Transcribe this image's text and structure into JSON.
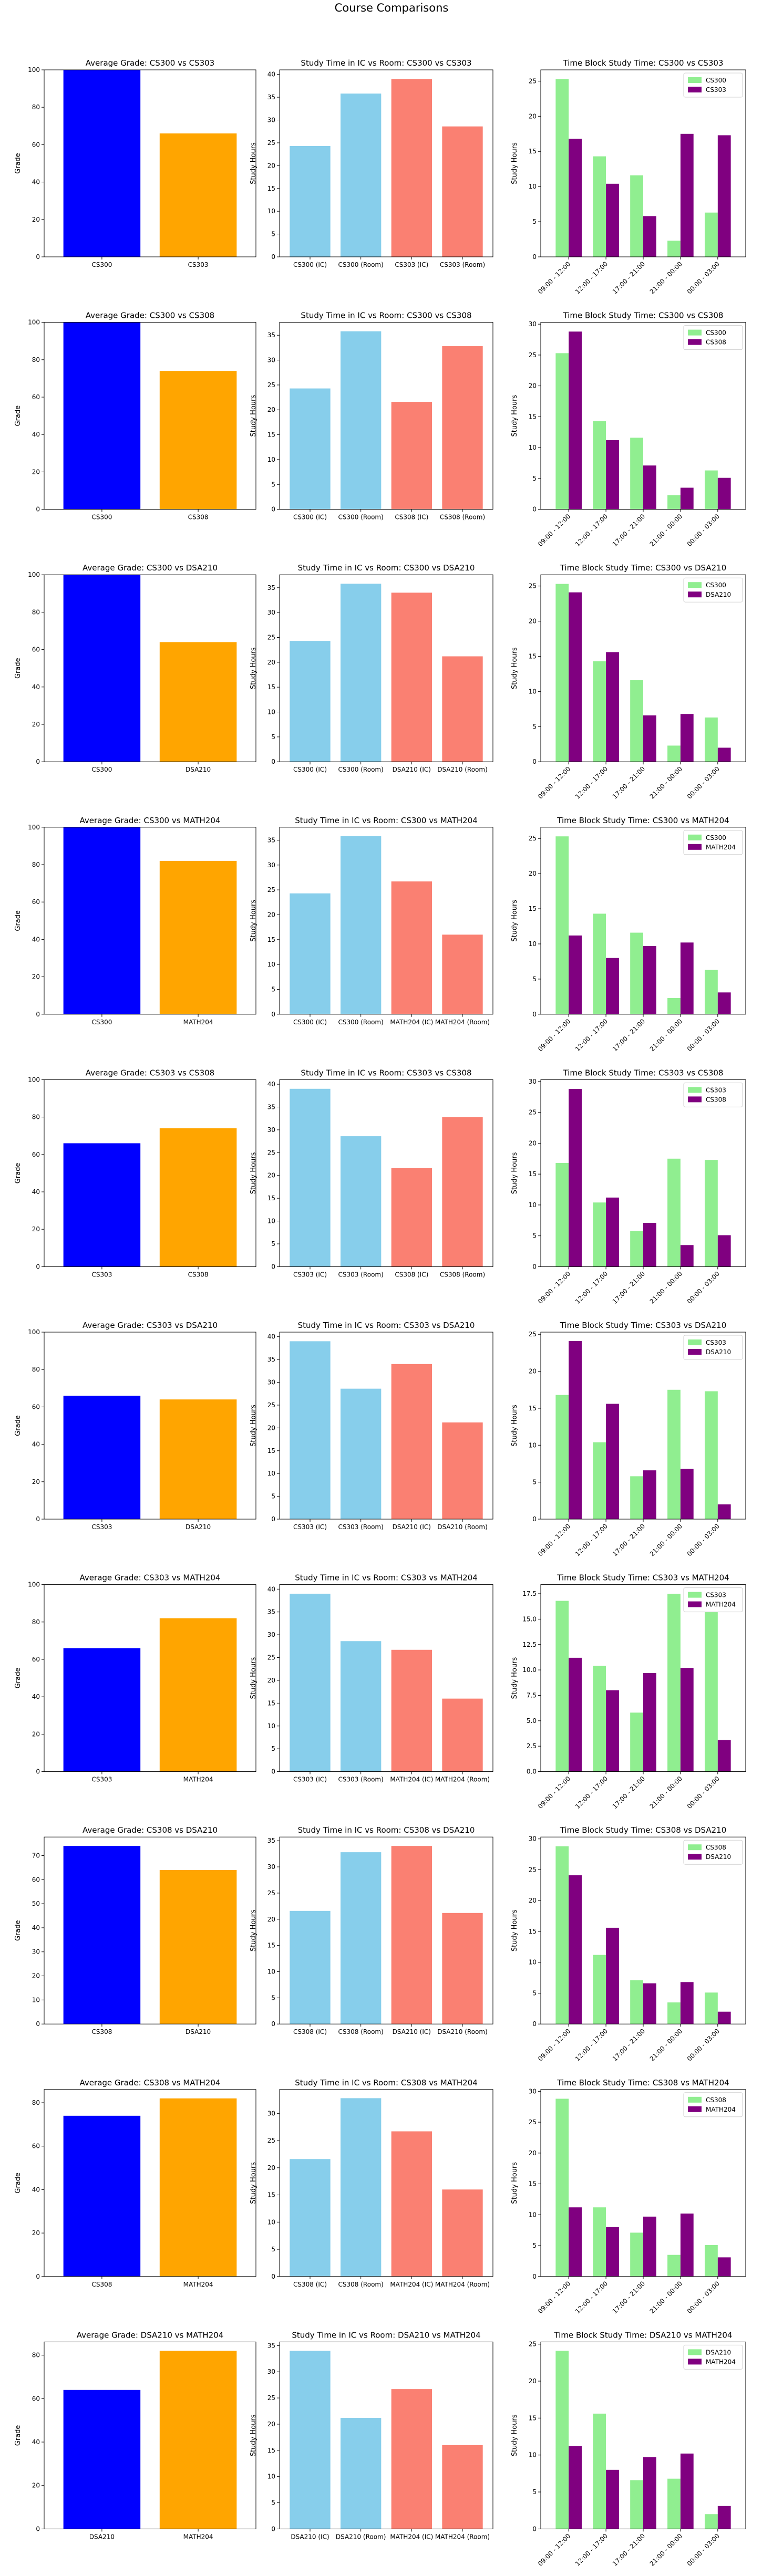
{
  "suptitle": "Course Comparisons",
  "colors": {
    "grade_a": "#0000ff",
    "grade_b": "#ffa500",
    "ic": "#87ceeb",
    "room": "#fa8072",
    "tb_a": "#90ee90",
    "tb_b": "#800080"
  },
  "labels": {
    "grade_ylabel": "Grade",
    "study_ylabel": "Study Hours"
  },
  "time_blocks": [
    "09:00 - 12:00",
    "12:00 - 17:00",
    "17:00 - 21:00",
    "21:00 - 00:00",
    "00:00 - 03:00"
  ],
  "chart_data": [
    {
      "row": 0,
      "type": "bar",
      "title": "Average Grade: CS300 vs CS303",
      "categories": [
        "CS300",
        "CS303"
      ],
      "values": [
        100,
        66
      ],
      "ylabel": "Grade",
      "ylim": [
        0,
        100
      ],
      "yticks": [
        0,
        20,
        40,
        60,
        80,
        100
      ]
    },
    {
      "row": 0,
      "type": "bar",
      "title": "Study Time in IC vs Room: CS300 vs CS303",
      "categories": [
        "CS300 (IC)",
        "CS300 (Room)",
        "CS303 (IC)",
        "CS303 (Room)"
      ],
      "values": [
        24.3,
        35.8,
        39,
        28.6
      ],
      "ylabel": "Study Hours",
      "ylim": [
        0,
        41
      ],
      "yticks": [
        0,
        5,
        10,
        15,
        20,
        25,
        30,
        35,
        40
      ]
    },
    {
      "row": 0,
      "type": "bar",
      "grouped": true,
      "title": "Time Block Study Time: CS300 vs CS303",
      "categories": [
        "09:00 - 12:00",
        "12:00 - 17:00",
        "17:00 - 21:00",
        "21:00 - 00:00",
        "00:00 - 03:00"
      ],
      "series": [
        {
          "name": "CS300",
          "values": [
            25.3,
            14.3,
            11.6,
            2.3,
            6.3
          ]
        },
        {
          "name": "CS303",
          "values": [
            16.8,
            10.4,
            5.8,
            17.5,
            17.3
          ]
        }
      ],
      "ylabel": "Study Hours",
      "ylim": [
        0,
        26.6
      ],
      "yticks": [
        0,
        5,
        10,
        15,
        20,
        25
      ]
    },
    {
      "row": 1,
      "type": "bar",
      "title": "Average Grade: CS300 vs CS308",
      "categories": [
        "CS300",
        "CS308"
      ],
      "values": [
        100,
        74
      ],
      "ylabel": "Grade",
      "ylim": [
        0,
        100
      ],
      "yticks": [
        0,
        20,
        40,
        60,
        80,
        100
      ]
    },
    {
      "row": 1,
      "type": "bar",
      "title": "Study Time in IC vs Room: CS300 vs CS308",
      "categories": [
        "CS300 (IC)",
        "CS300 (Room)",
        "CS308 (IC)",
        "CS308 (Room)"
      ],
      "values": [
        24.3,
        35.8,
        21.6,
        32.8
      ],
      "ylabel": "Study Hours",
      "ylim": [
        0,
        37.6
      ],
      "yticks": [
        0,
        5,
        10,
        15,
        20,
        25,
        30,
        35
      ]
    },
    {
      "row": 1,
      "type": "bar",
      "grouped": true,
      "title": "Time Block Study Time: CS300 vs CS308",
      "categories": [
        "09:00 - 12:00",
        "12:00 - 17:00",
        "17:00 - 21:00",
        "21:00 - 00:00",
        "00:00 - 03:00"
      ],
      "series": [
        {
          "name": "CS300",
          "values": [
            25.3,
            14.3,
            11.6,
            2.3,
            6.3
          ]
        },
        {
          "name": "CS308",
          "values": [
            28.8,
            11.2,
            7.1,
            3.5,
            5.1
          ]
        }
      ],
      "ylabel": "Study Hours",
      "ylim": [
        0,
        30.3
      ],
      "yticks": [
        0,
        5,
        10,
        15,
        20,
        25,
        30
      ]
    },
    {
      "row": 2,
      "type": "bar",
      "title": "Average Grade: CS300 vs DSA210",
      "categories": [
        "CS300",
        "DSA210"
      ],
      "values": [
        100,
        64
      ],
      "ylabel": "Grade",
      "ylim": [
        0,
        100
      ],
      "yticks": [
        0,
        20,
        40,
        60,
        80,
        100
      ]
    },
    {
      "row": 2,
      "type": "bar",
      "title": "Study Time in IC vs Room: CS300 vs DSA210",
      "categories": [
        "CS300 (IC)",
        "CS300 (Room)",
        "DSA210 (IC)",
        "DSA210 (Room)"
      ],
      "values": [
        24.3,
        35.8,
        34,
        21.2
      ],
      "ylabel": "Study Hours",
      "ylim": [
        0,
        37.6
      ],
      "yticks": [
        0,
        5,
        10,
        15,
        20,
        25,
        30,
        35
      ]
    },
    {
      "row": 2,
      "type": "bar",
      "grouped": true,
      "title": "Time Block Study Time: CS300 vs DSA210",
      "categories": [
        "09:00 - 12:00",
        "12:00 - 17:00",
        "17:00 - 21:00",
        "21:00 - 00:00",
        "00:00 - 03:00"
      ],
      "series": [
        {
          "name": "CS300",
          "values": [
            25.3,
            14.3,
            11.6,
            2.3,
            6.3
          ]
        },
        {
          "name": "DSA210",
          "values": [
            24.1,
            15.6,
            6.6,
            6.8,
            2.0
          ]
        }
      ],
      "ylabel": "Study Hours",
      "ylim": [
        0,
        26.6
      ],
      "yticks": [
        0,
        5,
        10,
        15,
        20,
        25
      ]
    },
    {
      "row": 3,
      "type": "bar",
      "title": "Average Grade: CS300 vs MATH204",
      "categories": [
        "CS300",
        "MATH204"
      ],
      "values": [
        100,
        82
      ],
      "ylabel": "Grade",
      "ylim": [
        0,
        100
      ],
      "yticks": [
        0,
        20,
        40,
        60,
        80,
        100
      ]
    },
    {
      "row": 3,
      "type": "bar",
      "title": "Study Time in IC vs Room: CS300 vs MATH204",
      "categories": [
        "CS300 (IC)",
        "CS300 (Room)",
        "MATH204 (IC)",
        "MATH204 (Room)"
      ],
      "values": [
        24.3,
        35.8,
        26.7,
        16
      ],
      "ylabel": "Study Hours",
      "ylim": [
        0,
        37.6
      ],
      "yticks": [
        0,
        5,
        10,
        15,
        20,
        25,
        30,
        35
      ]
    },
    {
      "row": 3,
      "type": "bar",
      "grouped": true,
      "title": "Time Block Study Time: CS300 vs MATH204",
      "categories": [
        "09:00 - 12:00",
        "12:00 - 17:00",
        "17:00 - 21:00",
        "21:00 - 00:00",
        "00:00 - 03:00"
      ],
      "series": [
        {
          "name": "CS300",
          "values": [
            25.3,
            14.3,
            11.6,
            2.3,
            6.3
          ]
        },
        {
          "name": "MATH204",
          "values": [
            11.2,
            8.0,
            9.7,
            10.2,
            3.1
          ]
        }
      ],
      "ylabel": "Study Hours",
      "ylim": [
        0,
        26.6
      ],
      "yticks": [
        0,
        5,
        10,
        15,
        20,
        25
      ]
    },
    {
      "row": 4,
      "type": "bar",
      "title": "Average Grade: CS303 vs CS308",
      "categories": [
        "CS303",
        "CS308"
      ],
      "values": [
        66,
        74
      ],
      "ylabel": "Grade",
      "ylim": [
        0,
        100
      ],
      "yticks": [
        0,
        20,
        40,
        60,
        80,
        100
      ]
    },
    {
      "row": 4,
      "type": "bar",
      "title": "Study Time in IC vs Room: CS303 vs CS308",
      "categories": [
        "CS303 (IC)",
        "CS303 (Room)",
        "CS308 (IC)",
        "CS308 (Room)"
      ],
      "values": [
        39,
        28.6,
        21.6,
        32.8
      ],
      "ylabel": "Study Hours",
      "ylim": [
        0,
        41
      ],
      "yticks": [
        0,
        5,
        10,
        15,
        20,
        25,
        30,
        35,
        40
      ]
    },
    {
      "row": 4,
      "type": "bar",
      "grouped": true,
      "title": "Time Block Study Time: CS303 vs CS308",
      "categories": [
        "09:00 - 12:00",
        "12:00 - 17:00",
        "17:00 - 21:00",
        "21:00 - 00:00",
        "00:00 - 03:00"
      ],
      "series": [
        {
          "name": "CS303",
          "values": [
            16.8,
            10.4,
            5.8,
            17.5,
            17.3
          ]
        },
        {
          "name": "CS308",
          "values": [
            28.8,
            11.2,
            7.1,
            3.5,
            5.1
          ]
        }
      ],
      "ylabel": "Study Hours",
      "ylim": [
        0,
        30.3
      ],
      "yticks": [
        0,
        5,
        10,
        15,
        20,
        25,
        30
      ]
    },
    {
      "row": 5,
      "type": "bar",
      "title": "Average Grade: CS303 vs DSA210",
      "categories": [
        "CS303",
        "DSA210"
      ],
      "values": [
        66,
        64
      ],
      "ylabel": "Grade",
      "ylim": [
        0,
        100
      ],
      "yticks": [
        0,
        20,
        40,
        60,
        80,
        100
      ]
    },
    {
      "row": 5,
      "type": "bar",
      "title": "Study Time in IC vs Room: CS303 vs DSA210",
      "categories": [
        "CS303 (IC)",
        "CS303 (Room)",
        "DSA210 (IC)",
        "DSA210 (Room)"
      ],
      "values": [
        39,
        28.6,
        34,
        21.2
      ],
      "ylabel": "Study Hours",
      "ylim": [
        0,
        41
      ],
      "yticks": [
        0,
        5,
        10,
        15,
        20,
        25,
        30,
        35,
        40
      ]
    },
    {
      "row": 5,
      "type": "bar",
      "grouped": true,
      "title": "Time Block Study Time: CS303 vs DSA210",
      "categories": [
        "09:00 - 12:00",
        "12:00 - 17:00",
        "17:00 - 21:00",
        "21:00 - 00:00",
        "00:00 - 03:00"
      ],
      "series": [
        {
          "name": "CS303",
          "values": [
            16.8,
            10.4,
            5.8,
            17.5,
            17.3
          ]
        },
        {
          "name": "DSA210",
          "values": [
            24.1,
            15.6,
            6.6,
            6.8,
            2.0
          ]
        }
      ],
      "ylabel": "Study Hours",
      "ylim": [
        0,
        25.3
      ],
      "yticks": [
        0,
        5,
        10,
        15,
        20,
        25
      ]
    },
    {
      "row": 6,
      "type": "bar",
      "title": "Average Grade: CS303 vs MATH204",
      "categories": [
        "CS303",
        "MATH204"
      ],
      "values": [
        66,
        82
      ],
      "ylabel": "Grade",
      "ylim": [
        0,
        100
      ],
      "yticks": [
        0,
        20,
        40,
        60,
        80,
        100
      ]
    },
    {
      "row": 6,
      "type": "bar",
      "title": "Study Time in IC vs Room: CS303 vs MATH204",
      "categories": [
        "CS303 (IC)",
        "CS303 (Room)",
        "MATH204 (IC)",
        "MATH204 (Room)"
      ],
      "values": [
        39,
        28.6,
        26.7,
        16
      ],
      "ylabel": "Study Hours",
      "ylim": [
        0,
        41
      ],
      "yticks": [
        0,
        5,
        10,
        15,
        20,
        25,
        30,
        35,
        40
      ]
    },
    {
      "row": 6,
      "type": "bar",
      "grouped": true,
      "title": "Time Block Study Time: CS303 vs MATH204",
      "categories": [
        "09:00 - 12:00",
        "12:00 - 17:00",
        "17:00 - 21:00",
        "21:00 - 00:00",
        "00:00 - 03:00"
      ],
      "series": [
        {
          "name": "CS303",
          "values": [
            16.8,
            10.4,
            5.8,
            17.5,
            17.3
          ]
        },
        {
          "name": "MATH204",
          "values": [
            11.2,
            8.0,
            9.7,
            10.2,
            3.1
          ]
        }
      ],
      "ylabel": "Study Hours",
      "ylim": [
        0,
        18.4
      ],
      "yticks": [
        0,
        2.5,
        5.0,
        7.5,
        10.0,
        12.5,
        15.0,
        17.5
      ]
    },
    {
      "row": 7,
      "type": "bar",
      "title": "Average Grade: CS308 vs DSA210",
      "categories": [
        "CS308",
        "DSA210"
      ],
      "values": [
        74,
        64
      ],
      "ylabel": "Grade",
      "ylim": [
        0,
        77.7
      ],
      "yticks": [
        0,
        10,
        20,
        30,
        40,
        50,
        60,
        70
      ]
    },
    {
      "row": 7,
      "type": "bar",
      "title": "Study Time in IC vs Room: CS308 vs DSA210",
      "categories": [
        "CS308 (IC)",
        "CS308 (Room)",
        "DSA210 (IC)",
        "DSA210 (Room)"
      ],
      "values": [
        21.6,
        32.8,
        34,
        21.2
      ],
      "ylabel": "Study Hours",
      "ylim": [
        0,
        35.7
      ],
      "yticks": [
        0,
        5,
        10,
        15,
        20,
        25,
        30,
        35
      ]
    },
    {
      "row": 7,
      "type": "bar",
      "grouped": true,
      "title": "Time Block Study Time: CS308 vs DSA210",
      "categories": [
        "09:00 - 12:00",
        "12:00 - 17:00",
        "17:00 - 21:00",
        "21:00 - 00:00",
        "00:00 - 03:00"
      ],
      "series": [
        {
          "name": "CS308",
          "values": [
            28.8,
            11.2,
            7.1,
            3.5,
            5.1
          ]
        },
        {
          "name": "DSA210",
          "values": [
            24.1,
            15.6,
            6.6,
            6.8,
            2.0
          ]
        }
      ],
      "ylabel": "Study Hours",
      "ylim": [
        0,
        30.3
      ],
      "yticks": [
        0,
        5,
        10,
        15,
        20,
        25,
        30
      ]
    },
    {
      "row": 8,
      "type": "bar",
      "title": "Average Grade: CS308 vs MATH204",
      "categories": [
        "CS308",
        "MATH204"
      ],
      "values": [
        74,
        82
      ],
      "ylabel": "Grade",
      "ylim": [
        0,
        86.1
      ],
      "yticks": [
        0,
        20,
        40,
        60,
        80
      ]
    },
    {
      "row": 8,
      "type": "bar",
      "title": "Study Time in IC vs Room: CS308 vs MATH204",
      "categories": [
        "CS308 (IC)",
        "CS308 (Room)",
        "MATH204 (IC)",
        "MATH204 (Room)"
      ],
      "values": [
        21.6,
        32.8,
        26.7,
        16
      ],
      "ylabel": "Study Hours",
      "ylim": [
        0,
        34.4
      ],
      "yticks": [
        0,
        5,
        10,
        15,
        20,
        25,
        30
      ]
    },
    {
      "row": 8,
      "type": "bar",
      "grouped": true,
      "title": "Time Block Study Time: CS308 vs MATH204",
      "categories": [
        "09:00 - 12:00",
        "12:00 - 17:00",
        "17:00 - 21:00",
        "21:00 - 00:00",
        "00:00 - 03:00"
      ],
      "series": [
        {
          "name": "CS308",
          "values": [
            28.8,
            11.2,
            7.1,
            3.5,
            5.1
          ]
        },
        {
          "name": "MATH204",
          "values": [
            11.2,
            8.0,
            9.7,
            10.2,
            3.1
          ]
        }
      ],
      "ylabel": "Study Hours",
      "ylim": [
        0,
        30.3
      ],
      "yticks": [
        0,
        5,
        10,
        15,
        20,
        25,
        30
      ]
    },
    {
      "row": 9,
      "type": "bar",
      "title": "Average Grade: DSA210 vs MATH204",
      "categories": [
        "DSA210",
        "MATH204"
      ],
      "values": [
        64,
        82
      ],
      "ylabel": "Grade",
      "ylim": [
        0,
        86.1
      ],
      "yticks": [
        0,
        20,
        40,
        60,
        80
      ]
    },
    {
      "row": 9,
      "type": "bar",
      "title": "Study Time in IC vs Room: DSA210 vs MATH204",
      "categories": [
        "DSA210 (IC)",
        "DSA210 (Room)",
        "MATH204 (IC)",
        "MATH204 (Room)"
      ],
      "values": [
        34,
        21.2,
        26.7,
        16
      ],
      "ylabel": "Study Hours",
      "ylim": [
        0,
        35.7
      ],
      "yticks": [
        0,
        5,
        10,
        15,
        20,
        25,
        30,
        35
      ]
    },
    {
      "row": 9,
      "type": "bar",
      "grouped": true,
      "title": "Time Block Study Time: DSA210 vs MATH204",
      "categories": [
        "09:00 - 12:00",
        "12:00 - 17:00",
        "17:00 - 21:00",
        "21:00 - 00:00",
        "00:00 - 03:00"
      ],
      "series": [
        {
          "name": "DSA210",
          "values": [
            24.1,
            15.6,
            6.6,
            6.8,
            2.0
          ]
        },
        {
          "name": "MATH204",
          "values": [
            11.2,
            8.0,
            9.7,
            10.2,
            3.1
          ]
        }
      ],
      "ylabel": "Study Hours",
      "ylim": [
        0,
        25.3
      ],
      "yticks": [
        0,
        5,
        10,
        15,
        20,
        25
      ]
    }
  ]
}
